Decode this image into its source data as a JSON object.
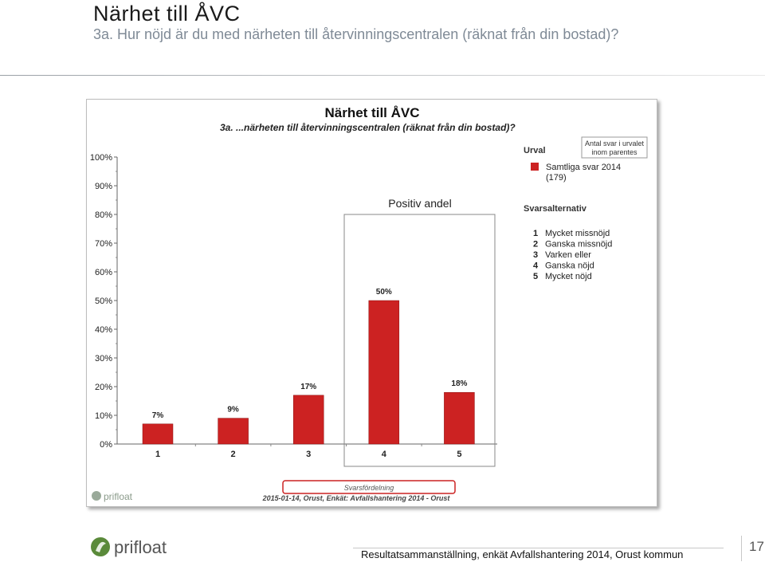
{
  "slide": {
    "title": "Närhet till ÅVC",
    "subtitle": "3a. Hur nöjd är du med närheten till återvinningscentralen (räknat från din bostad)?",
    "footer": "Resultatsammanställning, enkät Avfallshantering 2014, Orust kommun",
    "page_number": "17",
    "logo_text": "prifloat"
  },
  "chart_data": {
    "type": "bar",
    "title": "Närhet till ÅVC",
    "subtitle": "3a. ...närheten till återvinningscentralen (räknat från din bostad)?",
    "categories": [
      "1",
      "2",
      "3",
      "4",
      "5"
    ],
    "values": [
      7,
      9,
      17,
      50,
      18
    ],
    "value_labels": [
      "7%",
      "9%",
      "17%",
      "50%",
      "18%"
    ],
    "y_ticks": [
      "0%",
      "10%",
      "20%",
      "30%",
      "40%",
      "50%",
      "60%",
      "70%",
      "80%",
      "90%",
      "100%"
    ],
    "ylim": [
      0,
      100
    ],
    "bar_color": "#cc2222",
    "highlight_label": "Positiv andel",
    "highlight_categories": [
      "4",
      "5"
    ],
    "legend": {
      "heading": "Urval",
      "note": "Antal svar i urvalet inom parentes",
      "note_line1": "Antal svar i urvalet",
      "note_line2": "inom parentes",
      "series_name": "Samtliga svar 2014",
      "series_count": "(179)"
    },
    "answers": {
      "heading": "Svarsalternativ",
      "items": [
        {
          "num": "1",
          "label": "Mycket missnöjd"
        },
        {
          "num": "2",
          "label": "Ganska missnöjd"
        },
        {
          "num": "3",
          "label": "Varken eller"
        },
        {
          "num": "4",
          "label": "Ganska nöjd"
        },
        {
          "num": "5",
          "label": "Mycket nöjd"
        }
      ]
    },
    "xlabel": "Svarsfördelning",
    "source": "2015-01-14, Orust, Enkät: Avfallshantering 2014 - Orust",
    "inner_logo_text": "prifloat"
  }
}
